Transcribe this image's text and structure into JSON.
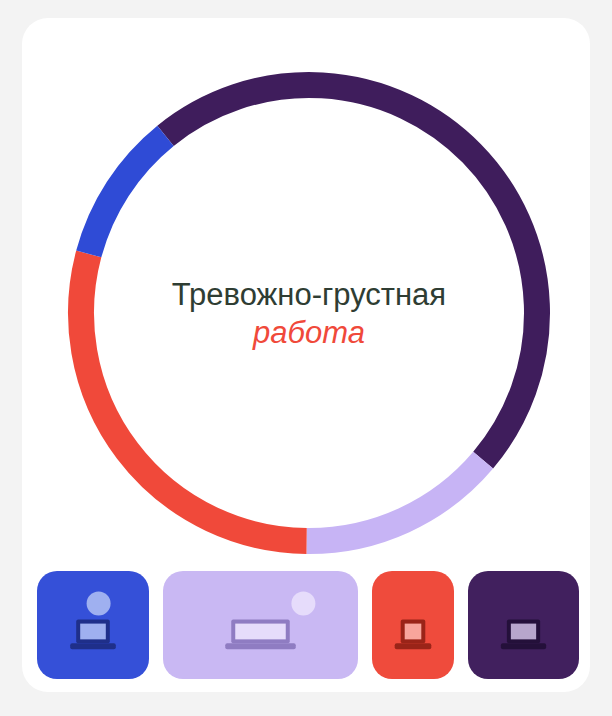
{
  "chart_data": {
    "type": "donut",
    "title": "Тревожно-грустная",
    "subtitle": "работа",
    "values": [
      47,
      14,
      29,
      10
    ],
    "colors": [
      "#3f1d5c",
      "#c7b4f5",
      "#f0493a",
      "#2f4bd6"
    ]
  }
}
